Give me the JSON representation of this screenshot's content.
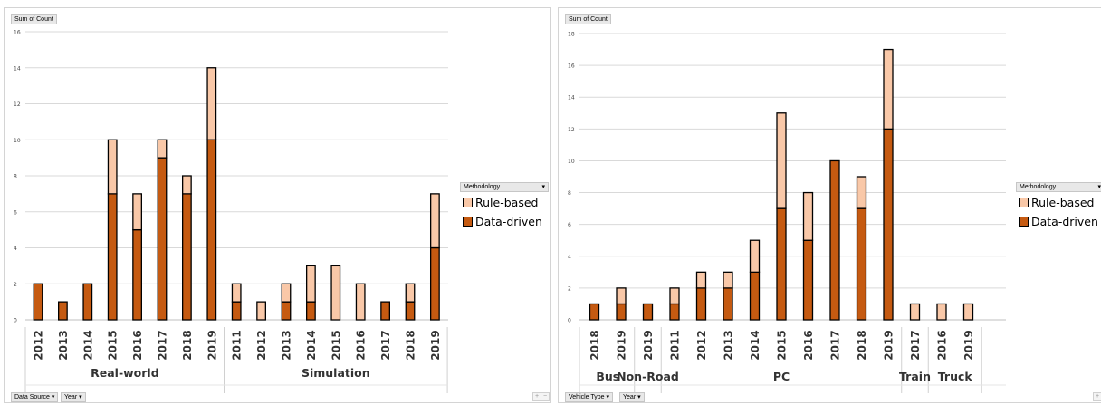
{
  "charts": [
    {
      "value_field_label": "Sum of Count",
      "axis_field_buttons": [
        "Data Source",
        "Year"
      ],
      "legend_field_label": "Methodology",
      "legend": [
        {
          "name": "Rule-based",
          "color": "#f9c8a8"
        },
        {
          "name": "Data-driven",
          "color": "#c55a11"
        }
      ],
      "zoom_buttons": [
        "+",
        "−"
      ]
    },
    {
      "value_field_label": "Sum of Count",
      "axis_field_buttons": [
        "Vehicle Type",
        "Year"
      ],
      "legend_field_label": "Methodology",
      "legend": [
        {
          "name": "Rule-based",
          "color": "#f9c8a8"
        },
        {
          "name": "Data-driven",
          "color": "#c55a11"
        }
      ],
      "zoom_buttons": [
        "+",
        "−"
      ]
    }
  ],
  "chart_data": [
    {
      "type": "bar",
      "stacked": true,
      "ylim": [
        0,
        16
      ],
      "yticks": [
        0,
        2,
        4,
        6,
        8,
        10,
        12,
        14,
        16
      ],
      "grid": true,
      "legend_position": "right",
      "groups": [
        {
          "label": "Real-world",
          "categories": [
            "2012",
            "2013",
            "2014",
            "2015",
            "2016",
            "2017",
            "2018",
            "2019"
          ]
        },
        {
          "label": "Simulation",
          "categories": [
            "2011",
            "2012",
            "2013",
            "2014",
            "2015",
            "2016",
            "2017",
            "2018",
            "2019"
          ]
        }
      ],
      "series": [
        {
          "name": "Data-driven",
          "values": [
            2,
            1,
            2,
            7,
            5,
            9,
            7,
            10,
            1,
            0,
            1,
            1,
            0,
            0,
            1,
            1,
            4
          ]
        },
        {
          "name": "Rule-based",
          "values": [
            0,
            0,
            0,
            3,
            2,
            1,
            1,
            4,
            1,
            1,
            1,
            2,
            3,
            2,
            0,
            1,
            3
          ]
        }
      ]
    },
    {
      "type": "bar",
      "stacked": true,
      "ylim": [
        0,
        18
      ],
      "yticks": [
        0,
        2,
        4,
        6,
        8,
        10,
        12,
        14,
        16,
        18
      ],
      "grid": true,
      "legend_position": "right",
      "groups": [
        {
          "label": "Bus",
          "categories": [
            "2018",
            "2019"
          ]
        },
        {
          "label": "Non-Road",
          "categories": [
            "2019"
          ]
        },
        {
          "label": "PC",
          "categories": [
            "2011",
            "2012",
            "2013",
            "2014",
            "2015",
            "2016",
            "2017",
            "2018",
            "2019"
          ]
        },
        {
          "label": "Train",
          "categories": [
            "2017"
          ]
        },
        {
          "label": "Truck",
          "categories": [
            "2016",
            "2019"
          ]
        }
      ],
      "series": [
        {
          "name": "Data-driven",
          "values": [
            1,
            1,
            1,
            1,
            2,
            2,
            3,
            7,
            5,
            10,
            7,
            12,
            0,
            0,
            0
          ]
        },
        {
          "name": "Rule-based",
          "values": [
            0,
            1,
            0,
            1,
            1,
            1,
            2,
            6,
            3,
            0,
            2,
            5,
            1,
            1,
            1
          ]
        }
      ]
    }
  ]
}
